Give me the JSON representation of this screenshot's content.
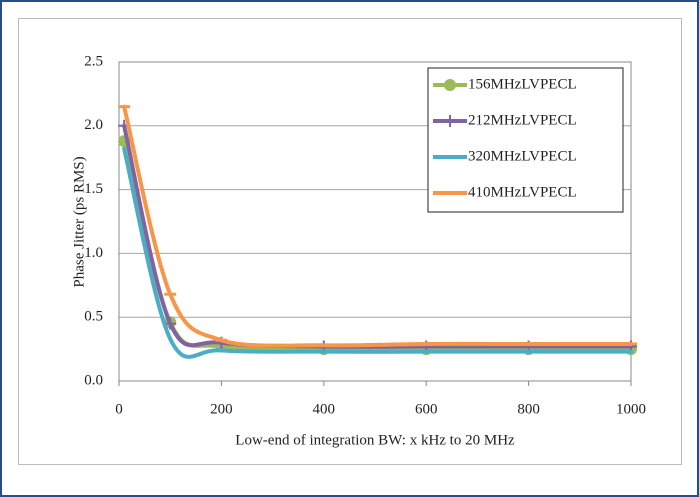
{
  "chart_data": {
    "type": "line",
    "x_label": "Low-end of integration BW: x kHz to 20 MHz",
    "y_label": "Phase Jitter (ps RMS)",
    "x": [
      10,
      100,
      200,
      400,
      600,
      800,
      1000
    ],
    "series": [
      {
        "name": "156MHzLVPECL",
        "color": "#9bbb59",
        "marker": "circle",
        "values": [
          1.88,
          0.46,
          0.27,
          0.25,
          0.25,
          0.25,
          0.25
        ]
      },
      {
        "name": "212MHzLVPECL",
        "color": "#8064a2",
        "marker": "plus",
        "values": [
          2.0,
          0.45,
          0.3,
          0.27,
          0.27,
          0.27,
          0.27
        ]
      },
      {
        "name": "320MHzLVPECL",
        "color": "#4bacc6",
        "marker": "none",
        "values": [
          1.82,
          0.33,
          0.24,
          0.23,
          0.23,
          0.23,
          0.23
        ]
      },
      {
        "name": "410MHzLVPECL",
        "color": "#f79646",
        "marker": "dash",
        "values": [
          2.15,
          0.68,
          0.32,
          0.28,
          0.29,
          0.29,
          0.29
        ]
      }
    ],
    "xlim": [
      0,
      1000
    ],
    "xticks": [
      0,
      200,
      400,
      600,
      800,
      1000
    ],
    "ylim": [
      0,
      2.5
    ],
    "yticks": [
      {
        "value": 0,
        "label": "0.0"
      },
      0.5,
      {
        "value": 1,
        "label": "1.0"
      },
      1.5,
      {
        "value": 2,
        "label": "2.0"
      },
      2.5
    ],
    "grid": true,
    "legend": "top-right"
  }
}
